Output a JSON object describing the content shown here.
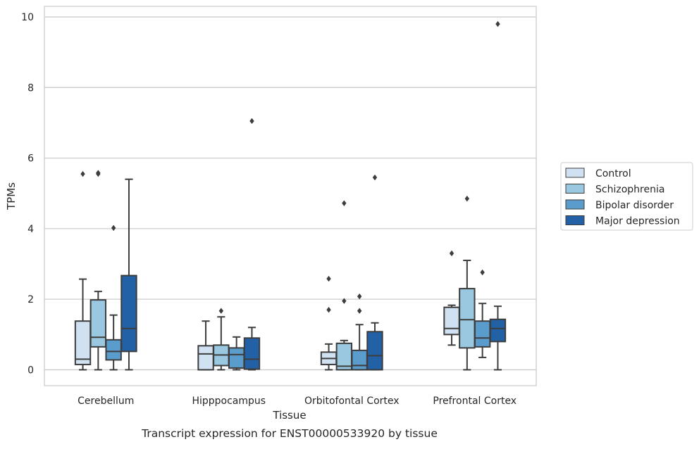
{
  "chart_data": {
    "type": "box",
    "title": "",
    "xlabel": "Tissue",
    "ylabel": "TPMs",
    "caption": "Transcript expression for ENST00000533920 by tissue",
    "ylim": [
      -0.45,
      10.3
    ],
    "yticks": [
      0,
      2,
      4,
      6,
      8,
      10
    ],
    "grid": "horizontal",
    "legend_position": "right",
    "categories": [
      "Cerebellum",
      "Hipppocampus",
      "Orbitofontal Cortex",
      "Prefrontal Cortex"
    ],
    "series": [
      {
        "name": "Control",
        "color": "#d0e1f2",
        "boxes": [
          {
            "whislo": 0.0,
            "q1": 0.15,
            "med": 0.3,
            "q3": 1.38,
            "whishi": 2.57,
            "fliers": [
              5.55
            ]
          },
          {
            "whislo": 0.0,
            "q1": 0.0,
            "med": 0.45,
            "q3": 0.68,
            "whishi": 1.38,
            "fliers": []
          },
          {
            "whislo": 0.0,
            "q1": 0.15,
            "med": 0.32,
            "q3": 0.5,
            "whishi": 0.73,
            "fliers": [
              1.7,
              2.58
            ]
          },
          {
            "whislo": 0.7,
            "q1": 1.0,
            "med": 1.17,
            "q3": 1.77,
            "whishi": 1.83,
            "fliers": [
              3.3
            ]
          }
        ]
      },
      {
        "name": "Schizophrenia",
        "color": "#9ac8e0",
        "boxes": [
          {
            "whislo": 0.0,
            "q1": 0.65,
            "med": 0.92,
            "q3": 1.98,
            "whishi": 2.22,
            "fliers": [
              5.55,
              5.58
            ]
          },
          {
            "whislo": 0.0,
            "q1": 0.12,
            "med": 0.42,
            "q3": 0.7,
            "whishi": 1.5,
            "fliers": [
              1.67
            ]
          },
          {
            "whislo": 0.0,
            "q1": 0.0,
            "med": 0.1,
            "q3": 0.75,
            "whishi": 0.83,
            "fliers": [
              1.95,
              4.72
            ]
          },
          {
            "whislo": 0.0,
            "q1": 0.62,
            "med": 1.42,
            "q3": 2.3,
            "whishi": 3.1,
            "fliers": [
              4.85
            ]
          }
        ]
      },
      {
        "name": "Bipolar disorder",
        "color": "#5a9dcc",
        "boxes": [
          {
            "whislo": 0.0,
            "q1": 0.28,
            "med": 0.52,
            "q3": 0.85,
            "whishi": 1.55,
            "fliers": [
              4.02
            ]
          },
          {
            "whislo": 0.0,
            "q1": 0.05,
            "med": 0.43,
            "q3": 0.62,
            "whishi": 0.93,
            "fliers": []
          },
          {
            "whislo": 0.0,
            "q1": 0.0,
            "med": 0.12,
            "q3": 0.55,
            "whishi": 1.28,
            "fliers": [
              1.67,
              2.08
            ]
          },
          {
            "whislo": 0.35,
            "q1": 0.65,
            "med": 0.9,
            "q3": 1.38,
            "whishi": 1.88,
            "fliers": [
              2.76
            ]
          }
        ]
      },
      {
        "name": "Major depression",
        "color": "#2261a6",
        "boxes": [
          {
            "whislo": 0.0,
            "q1": 0.52,
            "med": 1.17,
            "q3": 2.67,
            "whishi": 5.4,
            "fliers": []
          },
          {
            "whislo": 0.0,
            "q1": 0.02,
            "med": 0.3,
            "q3": 0.9,
            "whishi": 1.2,
            "fliers": [
              7.05
            ]
          },
          {
            "whislo": 0.0,
            "q1": 0.0,
            "med": 0.4,
            "q3": 1.08,
            "whishi": 1.33,
            "fliers": [
              5.45
            ]
          },
          {
            "whislo": 0.0,
            "q1": 0.8,
            "med": 1.17,
            "q3": 1.43,
            "whishi": 1.8,
            "fliers": [
              9.8
            ]
          }
        ]
      }
    ]
  }
}
